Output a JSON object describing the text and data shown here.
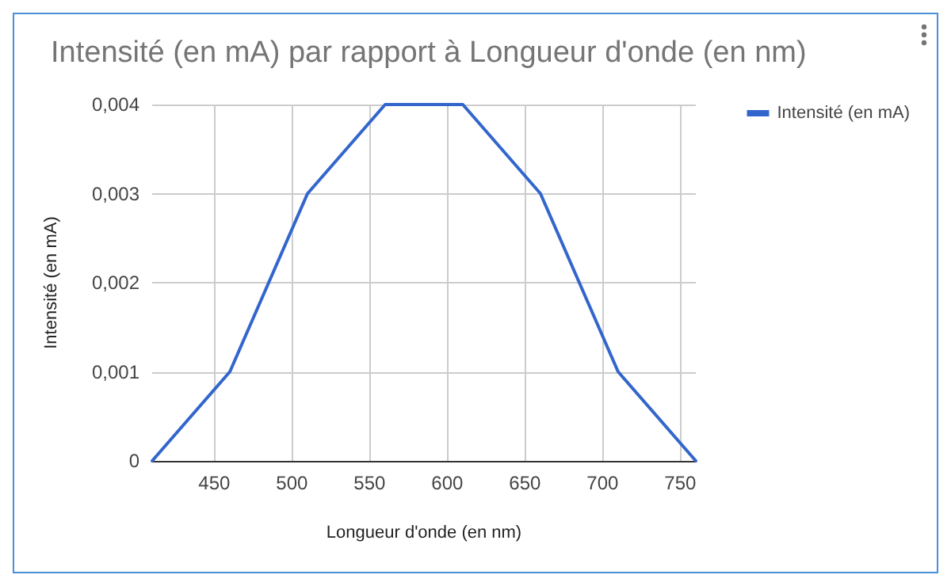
{
  "chart_data": {
    "type": "line",
    "title": "Intensité (en mA) par rapport à Longueur d'onde (en nm)",
    "xlabel": "Longueur d'onde (en nm)",
    "ylabel": "Intensité (en mA)",
    "x": [
      410,
      460,
      510,
      560,
      610,
      660,
      710,
      760
    ],
    "series": [
      {
        "name": "Intensité (en mA)",
        "color": "#3366cc",
        "values": [
          0,
          0.001,
          0.003,
          0.004,
          0.004,
          0.003,
          0.001,
          0
        ]
      }
    ],
    "xlim": [
      410,
      760
    ],
    "xticks": [
      450,
      500,
      550,
      600,
      650,
      700,
      750
    ],
    "ylim": [
      0,
      0.004
    ],
    "yticks": [
      {
        "value": 0,
        "label": "0"
      },
      {
        "value": 0.001,
        "label": "0,001"
      },
      {
        "value": 0.002,
        "label": "0,002"
      },
      {
        "value": 0.003,
        "label": "0,003"
      },
      {
        "value": 0.004,
        "label": "0,004"
      }
    ],
    "grid": true,
    "legend": "top right",
    "marker": "none",
    "line_style": "solid"
  }
}
